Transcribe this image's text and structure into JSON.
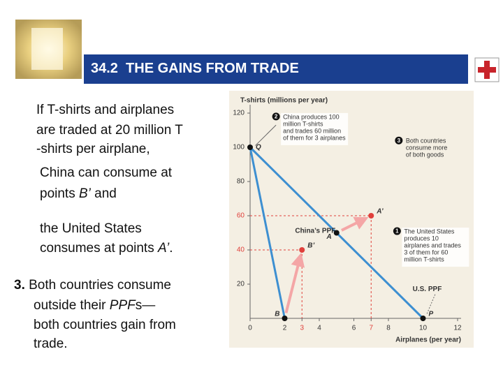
{
  "slide": {
    "title": "34.2  THE GAINS FROM TRADE",
    "lines": [
      [
        {
          "text": "If T-shirts and airplanes"
        }
      ],
      [
        {
          "text": "are traded at 20 million T"
        }
      ],
      [
        {
          "text": "-shirts per airplane,"
        }
      ],
      [
        {
          "text": "China can consume at"
        }
      ],
      [
        {
          "text": "points "
        },
        {
          "text": "B’",
          "italic": true
        },
        {
          "text": " and"
        }
      ],
      [
        {
          "text": "the United States"
        }
      ],
      [
        {
          "text": "consumes at points "
        },
        {
          "text": "A’",
          "italic": true
        },
        {
          "text": "."
        }
      ],
      [
        {
          "text": "3.",
          "bold": true
        },
        {
          "text": " Both countries consume"
        }
      ],
      [
        {
          "text": "outside their "
        },
        {
          "text": "PPF",
          "italic": true
        },
        {
          "text": "s—"
        }
      ],
      [
        {
          "text": "both countries gain from"
        }
      ],
      [
        {
          "text": "trade."
        }
      ]
    ]
  },
  "chart_data": {
    "type": "line",
    "y_label": "T-shirts (millions per year)",
    "x_label": "Airplanes (per year)",
    "xlim": [
      0,
      12
    ],
    "ylim": [
      0,
      120
    ],
    "xticks": [
      0,
      2,
      3,
      4,
      6,
      7,
      8,
      10,
      12
    ],
    "xtick_colors": [
      "#333333",
      "#333333",
      "#e0403b",
      "#333333",
      "#333333",
      "#e0403b",
      "#333333",
      "#333333",
      "#333333"
    ],
    "yticks": [
      20,
      40,
      60,
      80,
      100,
      120
    ],
    "ytick_colors": [
      "#333333",
      "#e0403b",
      "#e0403b",
      "#333333",
      "#333333",
      "#333333"
    ],
    "series": [
      {
        "name": "China’s PPF",
        "color": "#3d8fd1",
        "x": [
          0,
          2
        ],
        "values": [
          100,
          0
        ]
      },
      {
        "name": "U.S. PPF",
        "color": "#3d8fd1",
        "x": [
          0,
          10
        ],
        "values": [
          100,
          0
        ]
      }
    ],
    "points": [
      {
        "label": "Q",
        "x": 0,
        "y": 100
      },
      {
        "label": "P",
        "x": 10,
        "y": 0
      }
    ],
    "trades": [
      {
        "from": {
          "label": "B",
          "x": 2,
          "y": 0
        },
        "to": {
          "label": "B’",
          "x": 3,
          "y": 40
        }
      },
      {
        "from": {
          "label": "A",
          "x": 5,
          "y": 50
        },
        "to": {
          "label": "A’",
          "x": 7,
          "y": 60
        }
      }
    ],
    "arrow_color": "#f4a6a6",
    "gain_color": "#e0403b",
    "callouts": [
      {
        "number": "2",
        "lines": [
          "China produces 100",
          "million T-shirts",
          "and trades 60 million",
          "of them for 3 airplanes"
        ]
      },
      {
        "number": "3",
        "lines": [
          "Both countries",
          "consume more",
          "of both goods"
        ]
      },
      {
        "number": "1",
        "lines": [
          "The United States",
          "produces 10",
          "airplanes and trades",
          "3 of them for 60",
          "million T-shirts"
        ]
      }
    ]
  }
}
